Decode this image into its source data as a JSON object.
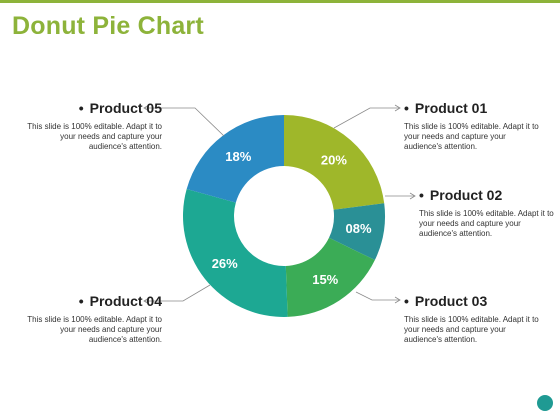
{
  "title": "Donut Pie Chart",
  "chart_data": {
    "type": "pie",
    "title": "Donut Pie Chart",
    "categories": [
      "Product 01",
      "Product 02",
      "Product 03",
      "Product 04",
      "Product 05"
    ],
    "values": [
      20,
      8,
      15,
      26,
      18
    ],
    "value_labels": [
      "20%",
      "08%",
      "15%",
      "26%",
      "18%"
    ],
    "colors": [
      "#9fb72a",
      "#2a9096",
      "#3bac56",
      "#1da893",
      "#2b8bc4"
    ],
    "donut": true
  },
  "products": [
    {
      "name": "Product 01",
      "desc": "This slide is 100% editable. Adapt it to your needs and capture your audience's attention."
    },
    {
      "name": "Product 02",
      "desc": "This slide is 100% editable. Adapt it to your needs and capture your audience's attention."
    },
    {
      "name": "Product 03",
      "desc": "This slide is 100% editable. Adapt it to your needs and capture your audience's attention."
    },
    {
      "name": "Product 04",
      "desc": "This slide is 100% editable. Adapt it to your needs and capture your audience's attention."
    },
    {
      "name": "Product 05",
      "desc": "This slide is 100% editable. Adapt it to your needs and capture your audience's attention."
    }
  ],
  "bullet": "•"
}
